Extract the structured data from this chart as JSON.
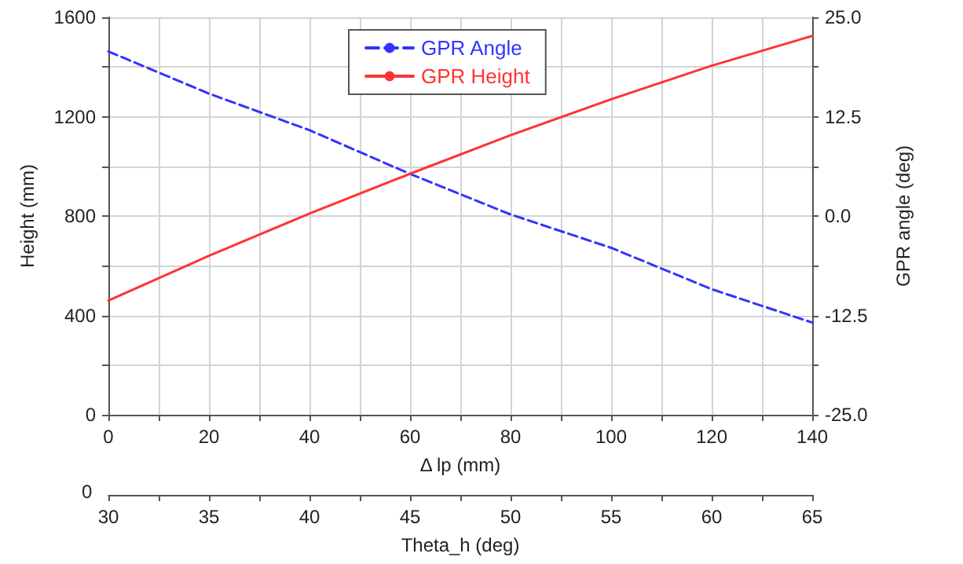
{
  "chart_data": {
    "type": "line",
    "xlabel": "Δ lp (mm)",
    "ylabel": "Height (mm)",
    "y2label": "GPR angle (deg)",
    "x2label": "Theta_h (deg)",
    "x": [
      0,
      20,
      40,
      60,
      80,
      100,
      120,
      140
    ],
    "series": [
      {
        "name": "GPR Angle",
        "color": "#3333ff",
        "axis": "y2",
        "line_style": "dashed",
        "values": [
          20.7,
          15.4,
          10.8,
          5.3,
          0.2,
          -4.0,
          -9.2,
          -13.4
        ]
      },
      {
        "name": "GPR Height",
        "color": "#ff3333",
        "line_style": "solid",
        "values": [
          460,
          640,
          810,
          970,
          1125,
          1270,
          1405,
          1525
        ]
      }
    ],
    "xlim": [
      0,
      140
    ],
    "xticks": [
      0,
      {
        "value": 10,
        "label": null
      },
      20,
      {
        "value": 30,
        "label": null
      },
      40,
      {
        "value": 50,
        "label": null
      },
      60,
      {
        "value": 70,
        "label": null
      },
      80,
      {
        "value": 90,
        "label": null
      },
      100,
      {
        "value": 110,
        "label": null
      },
      120,
      {
        "value": 130,
        "label": null
      },
      140
    ],
    "ylim": [
      0,
      1600
    ],
    "yticks": [
      0,
      {
        "value": 200,
        "label": null
      },
      400,
      {
        "value": 600,
        "label": null
      },
      800,
      {
        "value": 1000,
        "label": null
      },
      1200,
      {
        "value": 1400,
        "label": null
      },
      1600
    ],
    "y2lim": [
      -25,
      25
    ],
    "y2ticks": [
      {
        "value": -25,
        "label": "-25.0"
      },
      {
        "value": -18.75,
        "label": null
      },
      {
        "value": -12.5,
        "label": "-12.5"
      },
      {
        "value": -6.25,
        "label": null
      },
      {
        "value": 0,
        "label": "0.0"
      },
      {
        "value": 6.25,
        "label": null
      },
      {
        "value": 12.5,
        "label": "12.5"
      },
      {
        "value": 18.75,
        "label": null
      },
      {
        "value": 25,
        "label": "25.0"
      }
    ],
    "x2lim": [
      30,
      65
    ],
    "x2ticks": [
      30,
      {
        "value": 32.5,
        "label": null
      },
      35,
      {
        "value": 37.5,
        "label": null
      },
      40,
      {
        "value": 42.5,
        "label": null
      },
      45,
      {
        "value": 47.5,
        "label": null
      },
      50,
      {
        "value": 52.5,
        "label": null
      },
      55,
      {
        "value": 57.5,
        "label": null
      },
      60,
      {
        "value": 62.5,
        "label": null
      },
      65
    ],
    "annotations": [
      "0"
    ],
    "grid": true,
    "legend": "top",
    "marker": "none"
  }
}
